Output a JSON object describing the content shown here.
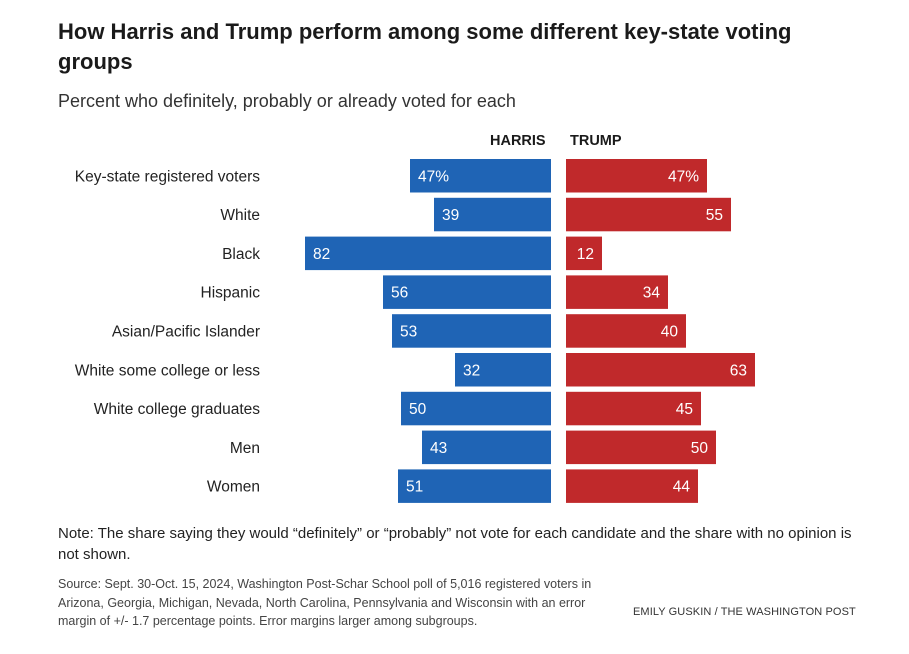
{
  "title": "How Harris and Trump perform among some different key-state voting groups",
  "subtitle": "Percent who definitely, probably or already voted for each",
  "column_headers": {
    "harris": "HARRIS",
    "trump": "TRUMP"
  },
  "colors": {
    "harris": "#1f64b5",
    "trump": "#c0292b"
  },
  "chart_data": {
    "type": "bar",
    "orientation": "horizontal-diverging",
    "categories": [
      "Key-state registered voters",
      "White",
      "Black",
      "Hispanic",
      "Asian/Pacific Islander",
      "White some college or less",
      "White college graduates",
      "Men",
      "Women"
    ],
    "series": [
      {
        "name": "HARRIS",
        "values": [
          47,
          39,
          82,
          56,
          53,
          32,
          50,
          43,
          51
        ],
        "labels": [
          "47%",
          "39",
          "82",
          "56",
          "53",
          "32",
          "50",
          "43",
          "51"
        ]
      },
      {
        "name": "TRUMP",
        "values": [
          47,
          55,
          12,
          34,
          40,
          63,
          45,
          50,
          44
        ],
        "labels": [
          "47%",
          "55",
          "12",
          "34",
          "40",
          "63",
          "45",
          "50",
          "44"
        ]
      }
    ],
    "unit": "%",
    "xlim": [
      0,
      100
    ]
  },
  "note": "Note: The share saying they would “definitely” or “probably” not vote for each candidate and the share with no opinion is not shown.",
  "source": "Source: Sept. 30-Oct. 15, 2024, Washington Post-Schar School poll of 5,016 registered voters in Arizona, Georgia, Michigan, Nevada, North Carolina, Pennsylvania and Wisconsin with an error margin of +/- 1.7 percentage points. Error margins larger among subgroups.",
  "credit": "EMILY GUSKIN / THE WASHINGTON POST"
}
